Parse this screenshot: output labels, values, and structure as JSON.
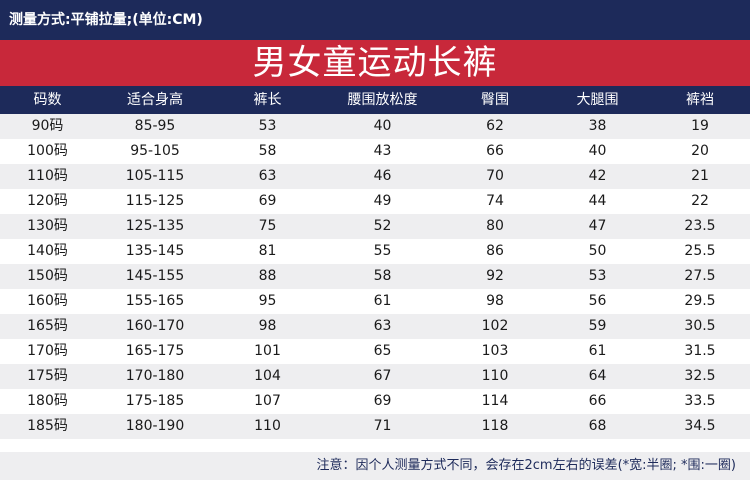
{
  "header": {
    "measure_method": "测量方式:平铺拉量;(单位:CM)",
    "title": "男女童运动长裤"
  },
  "table": {
    "columns": [
      "码数",
      "适合身高",
      "裤长",
      "腰围放松度",
      "臀围",
      "大腿围",
      "裤裆"
    ],
    "rows": [
      [
        "90码",
        "85-95",
        "53",
        "40",
        "62",
        "38",
        "19"
      ],
      [
        "100码",
        "95-105",
        "58",
        "43",
        "66",
        "40",
        "20"
      ],
      [
        "110码",
        "105-115",
        "63",
        "46",
        "70",
        "42",
        "21"
      ],
      [
        "120码",
        "115-125",
        "69",
        "49",
        "74",
        "44",
        "22"
      ],
      [
        "130码",
        "125-135",
        "75",
        "52",
        "80",
        "47",
        "23.5"
      ],
      [
        "140码",
        "135-145",
        "81",
        "55",
        "86",
        "50",
        "25.5"
      ],
      [
        "150码",
        "145-155",
        "88",
        "58",
        "92",
        "53",
        "27.5"
      ],
      [
        "160码",
        "155-165",
        "95",
        "61",
        "98",
        "56",
        "29.5"
      ],
      [
        "165码",
        "160-170",
        "98",
        "63",
        "102",
        "59",
        "30.5"
      ],
      [
        "170码",
        "165-175",
        "101",
        "65",
        "103",
        "61",
        "31.5"
      ],
      [
        "175码",
        "170-180",
        "104",
        "67",
        "110",
        "64",
        "32.5"
      ],
      [
        "180码",
        "175-185",
        "107",
        "69",
        "114",
        "66",
        "33.5"
      ],
      [
        "185码",
        "180-190",
        "110",
        "71",
        "118",
        "68",
        "34.5"
      ]
    ]
  },
  "footer": {
    "note": "注意：因个人测量方式不同，会存在2cm左右的误差(*宽:半圈; *围:一圈)"
  },
  "colors": {
    "navy": "#1d2a5a",
    "red": "#c8283a",
    "stripe": "#eeeef0"
  }
}
